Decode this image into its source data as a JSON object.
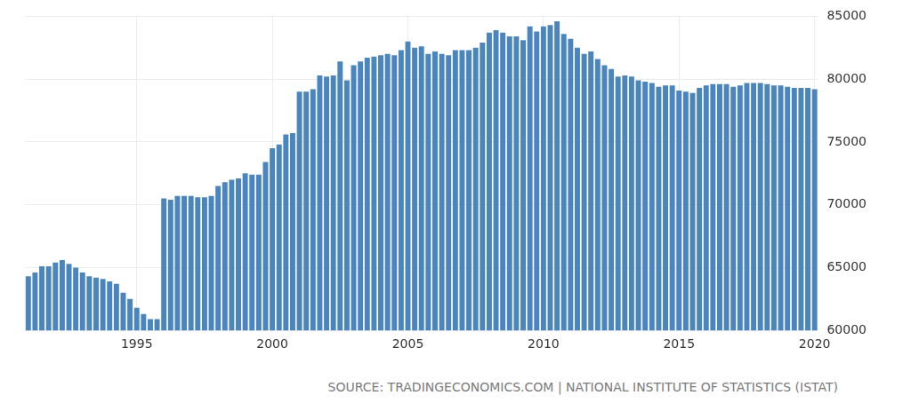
{
  "chart_data": {
    "type": "bar",
    "source": "SOURCE: TRADINGECONOMICS.COM | NATIONAL INSTITUTE OF STATISTICS (ISTAT)",
    "categories": [
      null,
      null,
      null,
      null,
      null,
      null,
      null,
      null,
      null,
      null,
      null,
      null,
      null,
      null,
      null,
      null,
      "1995",
      null,
      null,
      null,
      null,
      null,
      null,
      null,
      null,
      null,
      null,
      null,
      null,
      null,
      null,
      null,
      null,
      null,
      null,
      null,
      "2000",
      null,
      null,
      null,
      null,
      null,
      null,
      null,
      null,
      null,
      null,
      null,
      null,
      null,
      null,
      null,
      null,
      null,
      null,
      null,
      "2005",
      null,
      null,
      null,
      null,
      null,
      null,
      null,
      null,
      null,
      null,
      null,
      null,
      null,
      null,
      null,
      null,
      null,
      null,
      null,
      "2010",
      null,
      null,
      null,
      null,
      null,
      null,
      null,
      null,
      null,
      null,
      null,
      null,
      null,
      null,
      null,
      null,
      null,
      null,
      null,
      "2015",
      null,
      null,
      null,
      null,
      null,
      null,
      null,
      null,
      null,
      null,
      null,
      null,
      null,
      null,
      null,
      null,
      null,
      null,
      null,
      "2020"
    ],
    "values": [
      64300,
      64600,
      65100,
      65100,
      65400,
      65600,
      65300,
      65000,
      64600,
      64300,
      64200,
      64100,
      63900,
      63700,
      63000,
      62500,
      61800,
      61300,
      60900,
      60900,
      70500,
      70400,
      70700,
      70700,
      70700,
      70600,
      70600,
      70700,
      71500,
      71800,
      72000,
      72100,
      72500,
      72400,
      72400,
      73400,
      74500,
      74800,
      75600,
      75700,
      79000,
      79000,
      79200,
      80300,
      80200,
      80300,
      81400,
      79900,
      81100,
      81400,
      81700,
      81800,
      81900,
      82000,
      81900,
      82300,
      83000,
      82500,
      82600,
      82000,
      82200,
      82000,
      81900,
      82300,
      82300,
      82300,
      82500,
      82900,
      83700,
      83900,
      83700,
      83400,
      83400,
      83100,
      84200,
      83800,
      84200,
      84300,
      84600,
      83600,
      83200,
      82500,
      82000,
      82200,
      81600,
      81100,
      80800,
      80200,
      80300,
      80200,
      79900,
      79800,
      79700,
      79400,
      79500,
      79500,
      79100,
      79000,
      78900,
      79300,
      79500,
      79600,
      79600,
      79600,
      79400,
      79500,
      79700,
      79700,
      79700,
      79600,
      79500,
      79500,
      79400,
      79300,
      79300,
      79300,
      79200
    ],
    "color": "#4a85be",
    "ylim": [
      60000,
      85000
    ],
    "yticks": [
      60000,
      65000,
      70000,
      75000,
      80000,
      85000
    ],
    "grid": true
  }
}
